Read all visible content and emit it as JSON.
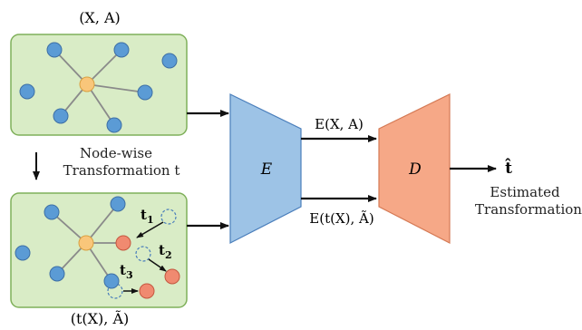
{
  "input_graph_label": "(X, A)",
  "transformed_graph_label": "(t(X), Ã)",
  "transformation_caption_line1": "Node-wise",
  "transformation_caption_line2": "Transformation t",
  "encoder_label": "E",
  "decoder_label": "D",
  "encoder_output_original": "E(X, A)",
  "encoder_output_transformed": "E(t(X), Ã)",
  "estimate_symbol": "t̂",
  "estimate_caption_line1": "Estimated",
  "estimate_caption_line2": "Transformation",
  "transform_labels": {
    "t1": "t",
    "t1_sub": "1",
    "t2": "t",
    "t2_sub": "2",
    "t3": "t",
    "t3_sub": "3"
  },
  "colors": {
    "panel_fill": "#d9ecc6",
    "panel_stroke": "#7fb05a",
    "node_blue": "#5b9bd5",
    "node_blue_stroke": "#3d6fa5",
    "center_node": "#f9c67a",
    "center_stroke": "#d9a040",
    "node_red": "#f08a70",
    "node_red_stroke": "#c4573f",
    "encoder_fill": "#9dc3e6",
    "encoder_stroke": "#4a7ebb",
    "decoder_fill": "#f6a887",
    "decoder_stroke": "#d57a55"
  }
}
